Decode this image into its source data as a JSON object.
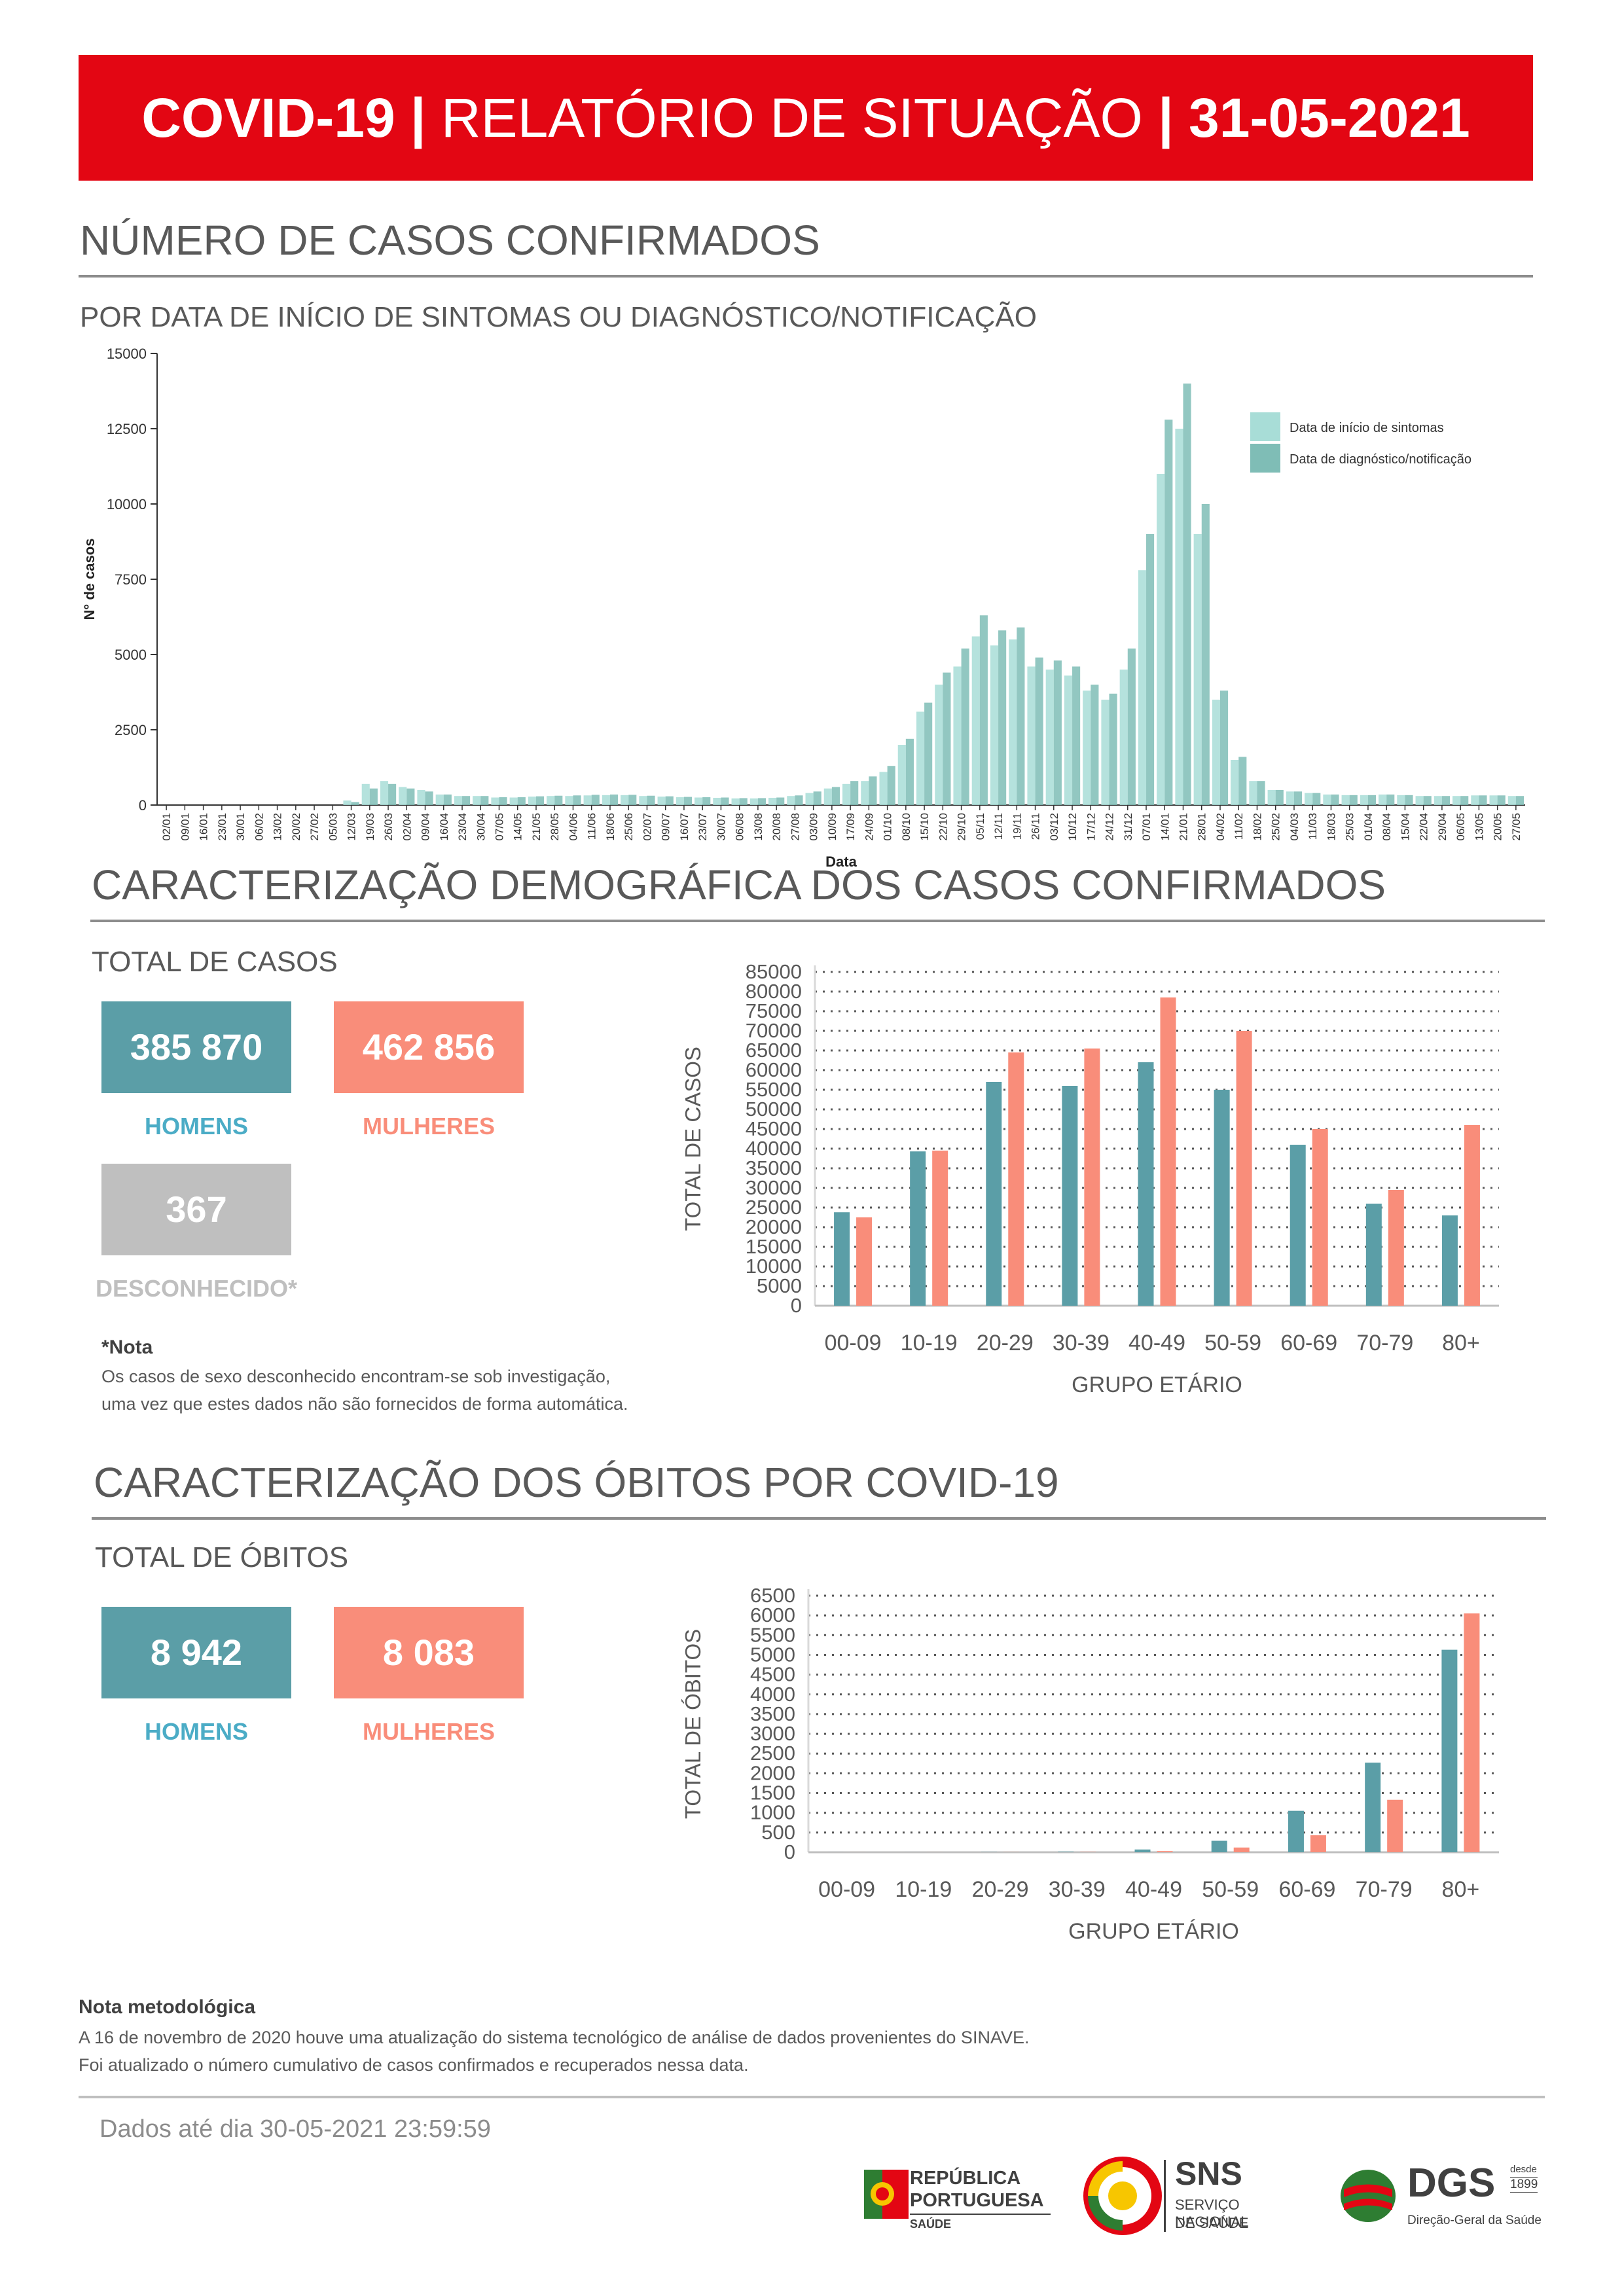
{
  "header": {
    "prefix": "COVID-19",
    "sep1": "|",
    "title": "RELATÓRIO DE SITUAÇÃO",
    "sep2": "|",
    "date": "31-05-2021",
    "color": "#e30613"
  },
  "section1": {
    "title": "NÚMERO DE CASOS CONFIRMADOS",
    "subtitle": "POR DATA DE INÍCIO DE SINTOMAS OU DIAGNÓSTICO/NOTIFICAÇÃO"
  },
  "section2": {
    "title": "CARACTERIZAÇÃO DEMOGRÁFICA DOS CASOS CONFIRMADOS",
    "total_label": "TOTAL DE CASOS",
    "men_value": "385 870",
    "men_label": "HOMENS",
    "women_value": "462 856",
    "women_label": "MULHERES",
    "unknown_value": "367",
    "unknown_label": "DESCONHECIDO*",
    "note_title": "*Nota",
    "note_line1": "Os casos de sexo desconhecido encontram-se sob investigação,",
    "note_line2": "uma vez que estes dados não são fornecidos de forma automática."
  },
  "section3": {
    "title": "CARACTERIZAÇÃO DOS ÓBITOS POR COVID-19",
    "total_label": "TOTAL DE ÓBITOS",
    "men_value": "8 942",
    "men_label": "HOMENS",
    "women_value": "8 083",
    "women_label": "MULHERES"
  },
  "methodology": {
    "title": "Nota metodológica",
    "line1": "A 16 de novembro de 2020 houve uma atualização do sistema tecnológico de análise de dados provenientes do SINAVE.",
    "line2": "Foi atualizado o número cumulativo de casos confirmados e recuperados nessa data."
  },
  "footer": {
    "data_until": "Dados até dia 30-05-2021 23:59:59",
    "logo1_line1": "REPÚBLICA",
    "logo1_line2": "PORTUGUESA",
    "logo1_line3": "SAÚDE",
    "logo2_title": "SNS",
    "logo2_line1": "SERVIÇO NACIONAL",
    "logo2_line2": "DE SAÚDE",
    "logo3_title": "DGS",
    "logo3_since1": "desde",
    "logo3_since2": "1899",
    "logo3_sub": "Direção-Geral da Saúde"
  },
  "colors": {
    "men": "#5b9ea7",
    "women": "#f98d7a",
    "unknown": "#bfbfbf",
    "onset": "#a8ddd7",
    "diagnosis": "#7fbdb6"
  },
  "chart_data": [
    {
      "type": "bar",
      "ylabel": "N° de casos",
      "xlabel": "Data",
      "ylim": [
        0,
        15000
      ],
      "yticks": [
        0,
        2500,
        5000,
        7500,
        10000,
        12500,
        15000
      ],
      "grid": false,
      "legend_position": "top-right",
      "x_tick_labels": [
        "02/01",
        "09/01",
        "16/01",
        "23/01",
        "30/01",
        "06/02",
        "13/02",
        "20/02",
        "27/02",
        "05/03",
        "12/03",
        "19/03",
        "26/03",
        "02/04",
        "09/04",
        "16/04",
        "23/04",
        "30/04",
        "07/05",
        "14/05",
        "21/05",
        "28/05",
        "04/06",
        "11/06",
        "18/06",
        "25/06",
        "02/07",
        "09/07",
        "16/07",
        "23/07",
        "30/07",
        "06/08",
        "13/08",
        "20/08",
        "27/08",
        "03/09",
        "10/09",
        "17/09",
        "24/09",
        "01/10",
        "08/10",
        "15/10",
        "22/10",
        "29/10",
        "05/11",
        "12/11",
        "19/11",
        "26/11",
        "03/12",
        "10/12",
        "17/12",
        "24/12",
        "31/12",
        "07/01",
        "14/01",
        "21/01",
        "28/01",
        "04/02",
        "11/02",
        "18/02",
        "25/02",
        "04/03",
        "11/03",
        "18/03",
        "25/03",
        "01/04",
        "08/04",
        "15/04",
        "22/04",
        "29/04",
        "06/05",
        "13/05",
        "20/05",
        "27/05"
      ],
      "series": [
        {
          "name": "Data de início de sintomas",
          "values": [
            0,
            0,
            0,
            0,
            0,
            0,
            0,
            0,
            0,
            0,
            150,
            700,
            800,
            600,
            500,
            350,
            300,
            300,
            250,
            250,
            280,
            300,
            300,
            320,
            330,
            330,
            300,
            280,
            260,
            250,
            240,
            220,
            220,
            240,
            300,
            400,
            550,
            700,
            800,
            1100,
            2000,
            3100,
            4000,
            4600,
            5600,
            5300,
            5500,
            4600,
            4500,
            4300,
            3800,
            3500,
            4500,
            7800,
            11000,
            12500,
            9000,
            3500,
            1500,
            800,
            500,
            450,
            400,
            350,
            330,
            330,
            350,
            330,
            300,
            300,
            300,
            320,
            320,
            300
          ]
        },
        {
          "name": "Data de diagnóstico/notificação",
          "values": [
            0,
            0,
            0,
            0,
            0,
            0,
            0,
            0,
            0,
            0,
            100,
            550,
            700,
            550,
            450,
            350,
            300,
            300,
            260,
            260,
            290,
            310,
            320,
            340,
            350,
            340,
            310,
            290,
            270,
            260,
            250,
            230,
            230,
            250,
            320,
            450,
            600,
            800,
            950,
            1300,
            2200,
            3400,
            4400,
            5200,
            6300,
            5800,
            5900,
            4900,
            4800,
            4600,
            4000,
            3700,
            5200,
            9000,
            12800,
            14000,
            10000,
            3800,
            1600,
            800,
            500,
            450,
            400,
            350,
            330,
            330,
            350,
            330,
            300,
            300,
            300,
            320,
            320,
            300
          ]
        }
      ]
    },
    {
      "type": "bar",
      "ylabel": "TOTAL DE CASOS",
      "xlabel": "GRUPO ETÁRIO",
      "ylim": [
        0,
        85000
      ],
      "yticks": [
        0,
        5000,
        10000,
        15000,
        20000,
        25000,
        30000,
        35000,
        40000,
        45000,
        50000,
        55000,
        60000,
        65000,
        70000,
        75000,
        80000,
        85000
      ],
      "grid": true,
      "categories": [
        "00-09",
        "10-19",
        "20-29",
        "30-39",
        "40-49",
        "50-59",
        "60-69",
        "70-79",
        "80+"
      ],
      "series": [
        {
          "name": "HOMENS",
          "values": [
            23800,
            39300,
            57000,
            56000,
            62000,
            55000,
            41000,
            26000,
            23000
          ]
        },
        {
          "name": "MULHERES",
          "values": [
            22500,
            39500,
            64500,
            65500,
            78500,
            70000,
            45000,
            29500,
            46000
          ]
        }
      ]
    },
    {
      "type": "bar",
      "ylabel": "TOTAL DE ÓBITOS",
      "xlabel": "GRUPO ETÁRIO",
      "ylim": [
        0,
        6500
      ],
      "yticks": [
        0,
        500,
        1000,
        1500,
        2000,
        2500,
        3000,
        3500,
        4000,
        4500,
        5000,
        5500,
        6000,
        6500
      ],
      "grid": true,
      "categories": [
        "00-09",
        "10-19",
        "20-29",
        "30-39",
        "40-49",
        "50-59",
        "60-69",
        "70-79",
        "80+"
      ],
      "series": [
        {
          "name": "HOMENS",
          "values": [
            1,
            1,
            5,
            15,
            70,
            290,
            1050,
            2270,
            5130
          ]
        },
        {
          "name": "MULHERES",
          "values": [
            1,
            1,
            3,
            8,
            30,
            120,
            430,
            1330,
            6050
          ]
        }
      ]
    }
  ]
}
